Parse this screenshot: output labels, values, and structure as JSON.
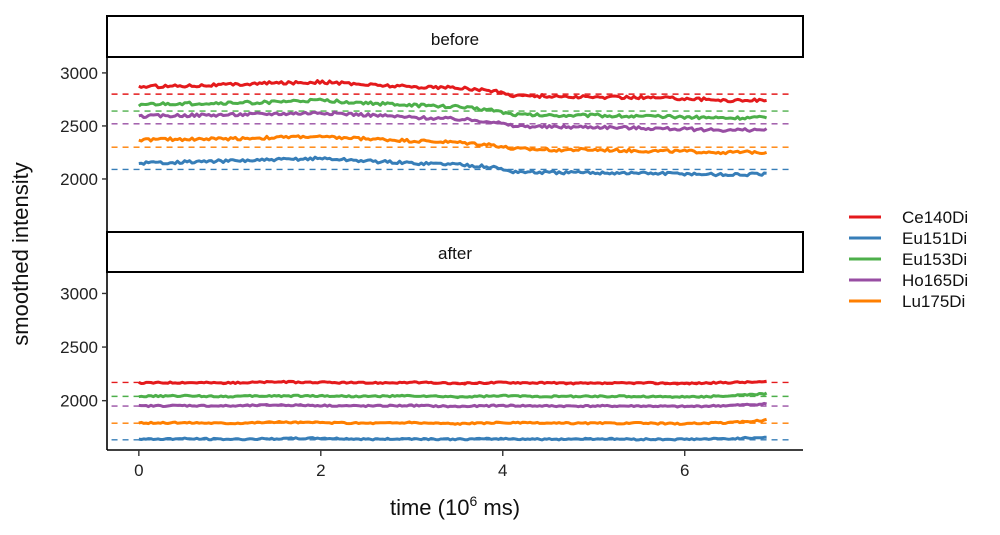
{
  "chart_data": {
    "type": "line",
    "xlabel_main": "time (10",
    "xlabel_exp": "6",
    "xlabel_tail": " ms)",
    "ylabel": "smoothed intensity",
    "xlim": [
      -0.35,
      7.3
    ],
    "x_ticks": [
      0,
      2,
      4,
      6
    ],
    "x_tick_labels": [
      "0",
      "2",
      "4",
      "6"
    ],
    "y_ticks": [
      2000,
      2500,
      3000
    ],
    "y_tick_labels": [
      "2000",
      "2500",
      "3000"
    ],
    "grid": false,
    "legend_position": "right",
    "series_names": [
      "Ce140Di",
      "Eu151Di",
      "Eu153Di",
      "Ho165Di",
      "Lu175Di"
    ],
    "colors": [
      "#e41a1c",
      "#377eb8",
      "#4daf4a",
      "#984ea3",
      "#ff7f00"
    ],
    "panels": [
      {
        "label": "before",
        "ylim": [
          1500,
          3150
        ],
        "x": [
          0,
          0.5,
          1,
          1.5,
          1.8,
          2,
          2.5,
          3,
          3.5,
          3.9,
          4.1,
          4.5,
          5,
          5.5,
          6,
          6.5,
          6.9
        ],
        "series": [
          {
            "name": "Ce140Di",
            "reference": 2800,
            "values": [
              2870,
              2880,
              2890,
              2905,
              2910,
              2915,
              2890,
              2870,
              2860,
              2830,
              2790,
              2780,
              2770,
              2770,
              2760,
              2740,
              2745
            ]
          },
          {
            "name": "Eu151Di",
            "reference": 2090,
            "values": [
              2150,
              2160,
              2170,
              2180,
              2190,
              2195,
              2170,
              2150,
              2140,
              2110,
              2070,
              2060,
              2060,
              2055,
              2050,
              2040,
              2045
            ]
          },
          {
            "name": "Eu153Di",
            "reference": 2640,
            "values": [
              2700,
              2710,
              2715,
              2725,
              2735,
              2740,
              2715,
              2695,
              2680,
              2650,
              2610,
              2600,
              2600,
              2590,
              2585,
              2575,
              2580
            ]
          },
          {
            "name": "Ho165Di",
            "reference": 2520,
            "values": [
              2590,
              2600,
              2605,
              2615,
              2620,
              2625,
              2605,
              2580,
              2565,
              2540,
              2500,
              2490,
              2490,
              2480,
              2470,
              2460,
              2465
            ]
          },
          {
            "name": "Lu175Di",
            "reference": 2300,
            "values": [
              2370,
              2375,
              2380,
              2390,
              2400,
              2395,
              2380,
              2360,
              2345,
              2320,
              2285,
              2275,
              2275,
              2265,
              2260,
              2250,
              2255
            ]
          }
        ]
      },
      {
        "label": "after",
        "ylim": [
          1540,
          3200
        ],
        "x": [
          0,
          0.5,
          1,
          1.5,
          2,
          2.5,
          3,
          3.5,
          4,
          4.5,
          5,
          5.5,
          6,
          6.5,
          6.9
        ],
        "series": [
          {
            "name": "Ce140Di",
            "reference": 2170,
            "values": [
              2165,
              2170,
              2165,
              2175,
              2170,
              2165,
              2170,
              2160,
              2170,
              2165,
              2160,
              2165,
              2160,
              2170,
              2175
            ]
          },
          {
            "name": "Eu151Di",
            "reference": 1635,
            "values": [
              1640,
              1645,
              1640,
              1645,
              1650,
              1640,
              1645,
              1640,
              1645,
              1640,
              1645,
              1640,
              1640,
              1645,
              1660
            ]
          },
          {
            "name": "Eu153Di",
            "reference": 2040,
            "values": [
              2040,
              2045,
              2040,
              2045,
              2045,
              2040,
              2045,
              2035,
              2045,
              2040,
              2040,
              2040,
              2035,
              2045,
              2065
            ]
          },
          {
            "name": "Ho165Di",
            "reference": 1950,
            "values": [
              1950,
              1955,
              1950,
              1960,
              1955,
              1950,
              1955,
              1945,
              1955,
              1950,
              1950,
              1950,
              1945,
              1955,
              1970
            ]
          },
          {
            "name": "Lu175Di",
            "reference": 1790,
            "values": [
              1790,
              1795,
              1790,
              1800,
              1795,
              1790,
              1795,
              1785,
              1795,
              1790,
              1790,
              1790,
              1785,
              1795,
              1820
            ]
          }
        ]
      }
    ]
  }
}
